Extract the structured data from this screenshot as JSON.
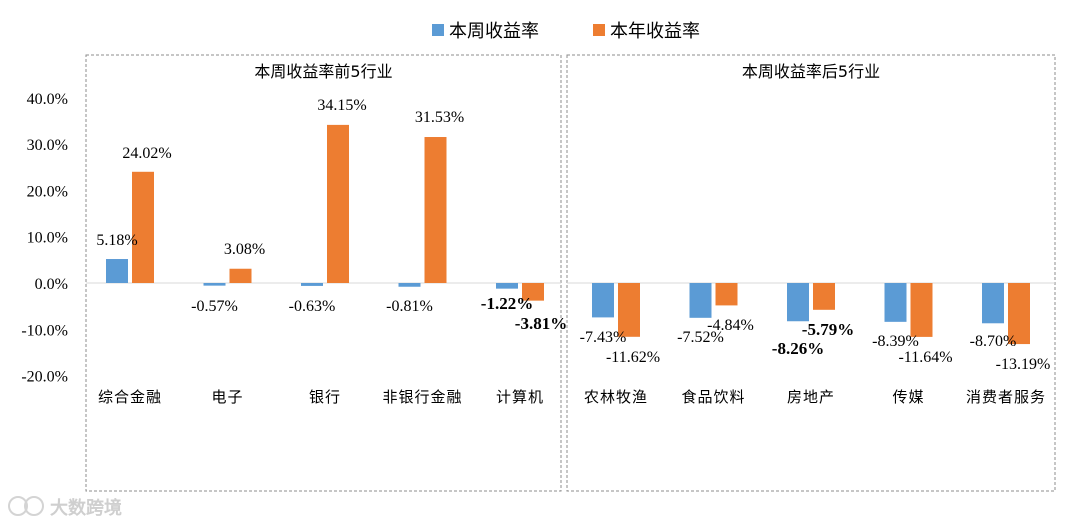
{
  "chart_data": {
    "type": "bar",
    "legend": [
      {
        "name": "本周收益率",
        "color": "#5B9BD5"
      },
      {
        "name": "本年收益率",
        "color": "#ED7D31"
      }
    ],
    "legend_position": "top-center",
    "y_ticks": [
      "40.0%",
      "30.0%",
      "20.0%",
      "10.0%",
      "0.0%",
      "-10.0%",
      "-20.0%"
    ],
    "ylim": [
      -20,
      40
    ],
    "grid": false,
    "panels": [
      {
        "title": "本周收益率前5行业",
        "categories": [
          "综合金融",
          "电子",
          "银行",
          "非银行金融",
          "计算机"
        ],
        "weekly": [
          5.18,
          -0.57,
          -0.63,
          -0.81,
          -1.22
        ],
        "yearly": [
          24.02,
          3.08,
          34.15,
          31.53,
          -3.81
        ],
        "weekly_labels": [
          "5.18%",
          "-0.57%",
          "-0.63%",
          "-0.81%",
          "-1.22%"
        ],
        "yearly_labels": [
          "24.02%",
          "3.08%",
          "34.15%",
          "31.53%",
          "-3.81%"
        ]
      },
      {
        "title": "本周收益率后5行业",
        "categories": [
          "农林牧渔",
          "食品饮料",
          "房地产",
          "传媒",
          "消费者服务"
        ],
        "weekly": [
          -7.43,
          -7.52,
          -8.26,
          -8.39,
          -8.7
        ],
        "yearly": [
          -11.62,
          -4.84,
          -5.79,
          -11.64,
          -13.19
        ],
        "weekly_labels": [
          "-7.43%",
          "-7.52%",
          "-8.26%",
          "-8.39%",
          "-8.70%"
        ],
        "yearly_labels": [
          "-11.62%",
          "-4.84%",
          "-5.79%",
          "-11.64%",
          "-13.19%"
        ]
      }
    ]
  },
  "watermark": "大数跨境"
}
